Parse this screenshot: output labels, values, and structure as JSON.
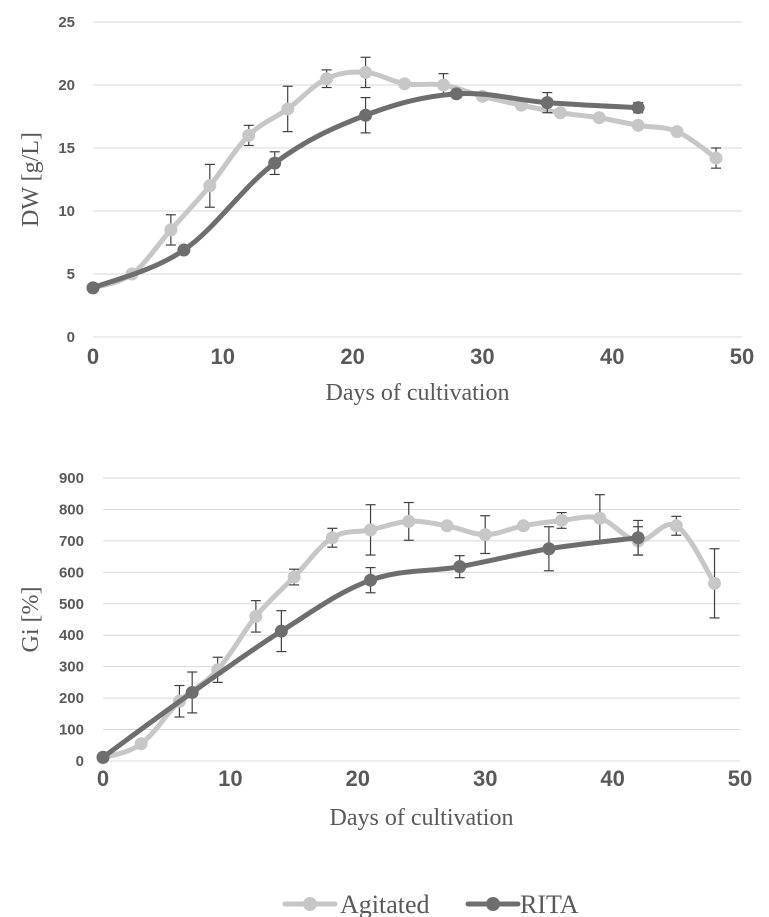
{
  "legend": {
    "items": [
      {
        "label": "Agitated",
        "color": "#c7c7c7"
      },
      {
        "label": "RITA",
        "color": "#6e6e6e"
      }
    ],
    "position": "bottom-center"
  },
  "chart_data": [
    {
      "type": "line",
      "xlabel": "Days of cultivation",
      "ylabel": "DW [g/L]",
      "xlim": [
        0,
        50
      ],
      "ylim": [
        0,
        25
      ],
      "xticks": [
        "0",
        "10",
        "20",
        "30",
        "40",
        "50"
      ],
      "yticks": [
        "0",
        "5",
        "10",
        "15",
        "20",
        "25"
      ],
      "grid": true,
      "series": [
        {
          "name": "Agitated",
          "color": "#c7c7c7",
          "x": [
            0,
            3,
            6,
            9,
            12,
            15,
            18,
            21,
            24,
            27,
            30,
            33,
            36,
            39,
            42,
            45,
            48
          ],
          "y": [
            3.9,
            5.0,
            8.5,
            12.0,
            16.0,
            18.1,
            20.5,
            21.0,
            20.1,
            20.0,
            19.1,
            18.4,
            17.8,
            17.4,
            16.8,
            16.3,
            14.2
          ],
          "error": [
            0.2,
            0.2,
            1.2,
            1.7,
            0.8,
            1.8,
            0.7,
            1.2,
            0.2,
            0.9,
            0.2,
            0.3,
            0.2,
            0.2,
            0.2,
            0.2,
            0.8
          ]
        },
        {
          "name": "RITA",
          "color": "#6e6e6e",
          "x": [
            0,
            7,
            14,
            21,
            28,
            35,
            42
          ],
          "y": [
            3.9,
            6.9,
            13.8,
            17.6,
            19.3,
            18.6,
            18.2
          ],
          "error": [
            0.2,
            0.2,
            0.9,
            1.4,
            0.3,
            0.8,
            0.4
          ]
        }
      ]
    },
    {
      "type": "line",
      "xlabel": "Days of cultivation",
      "ylabel": "Gi [%]",
      "xlim": [
        0,
        50
      ],
      "ylim": [
        0,
        900
      ],
      "xticks": [
        "0",
        "10",
        "20",
        "30",
        "40",
        "50"
      ],
      "yticks": [
        "0",
        "100",
        "200",
        "300",
        "400",
        "500",
        "600",
        "700",
        "800",
        "900"
      ],
      "grid": true,
      "series": [
        {
          "name": "Agitated",
          "color": "#c7c7c7",
          "x": [
            0,
            3,
            6,
            9,
            12,
            15,
            18,
            21,
            24,
            27,
            30,
            33,
            36,
            39,
            42,
            45,
            48
          ],
          "y": [
            10,
            55,
            190,
            290,
            460,
            585,
            710,
            735,
            762,
            748,
            720,
            748,
            765,
            772,
            700,
            748,
            565
          ],
          "error": [
            5,
            5,
            50,
            40,
            50,
            25,
            30,
            80,
            60,
            10,
            60,
            10,
            25,
            75,
            45,
            30,
            110
          ]
        },
        {
          "name": "RITA",
          "color": "#6e6e6e",
          "x": [
            0,
            7,
            14,
            21,
            28,
            35,
            42
          ],
          "y": [
            12,
            218,
            413,
            575,
            618,
            675,
            710
          ],
          "error": [
            5,
            65,
            65,
            40,
            35,
            70,
            55
          ]
        }
      ]
    }
  ]
}
